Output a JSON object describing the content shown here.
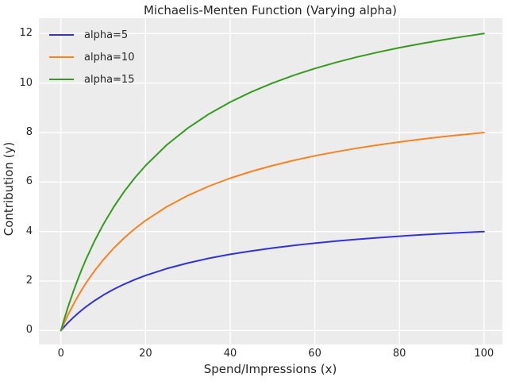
{
  "chart_data": {
    "type": "line",
    "title": "Michaelis-Menten Function (Varying alpha)",
    "xlabel": "Spend/Impressions (x)",
    "ylabel": "Contribution (y)",
    "x": [
      0,
      0.5,
      1,
      1.5,
      2,
      3,
      4,
      5,
      6,
      8,
      10,
      12.5,
      15,
      17.5,
      20,
      25,
      30,
      35,
      40,
      45,
      50,
      55,
      60,
      65,
      70,
      75,
      80,
      85,
      90,
      95,
      100
    ],
    "series": [
      {
        "name": "alpha=5",
        "color": "#3232d8",
        "values": [
          0,
          0.098,
          0.192,
          0.283,
          0.37,
          0.536,
          0.69,
          0.833,
          0.968,
          1.212,
          1.429,
          1.667,
          1.875,
          2.059,
          2.222,
          2.5,
          2.727,
          2.917,
          3.077,
          3.214,
          3.333,
          3.438,
          3.529,
          3.611,
          3.684,
          3.75,
          3.81,
          3.864,
          3.913,
          3.958,
          4.0
        ]
      },
      {
        "name": "alpha=10",
        "color": "#f8821e",
        "values": [
          0,
          0.196,
          0.385,
          0.566,
          0.741,
          1.071,
          1.379,
          1.667,
          1.935,
          2.424,
          2.857,
          3.333,
          3.75,
          4.118,
          4.444,
          5.0,
          5.455,
          5.833,
          6.154,
          6.429,
          6.667,
          6.875,
          7.059,
          7.222,
          7.368,
          7.5,
          7.619,
          7.727,
          7.826,
          7.917,
          8.0
        ]
      },
      {
        "name": "alpha=15",
        "color": "#349b1d",
        "values": [
          0,
          0.294,
          0.577,
          0.849,
          1.111,
          1.607,
          2.069,
          2.5,
          2.903,
          3.636,
          4.286,
          5.0,
          5.625,
          6.176,
          6.667,
          7.5,
          8.182,
          8.75,
          9.231,
          9.643,
          10.0,
          10.312,
          10.588,
          10.833,
          11.053,
          11.25,
          11.429,
          11.591,
          11.739,
          11.875,
          12.0
        ]
      }
    ],
    "xticks": [
      0,
      20,
      40,
      60,
      80,
      100
    ],
    "yticks": [
      0,
      2,
      4,
      6,
      8,
      10,
      12
    ],
    "xlim": [
      -5.3,
      104.35
    ],
    "ylim": [
      -0.55,
      12.62
    ],
    "grid": true,
    "legend_position": "upper-left",
    "colors": {
      "plot_bg": "#ececec",
      "grid": "#ffffff",
      "text": "#262626"
    }
  }
}
